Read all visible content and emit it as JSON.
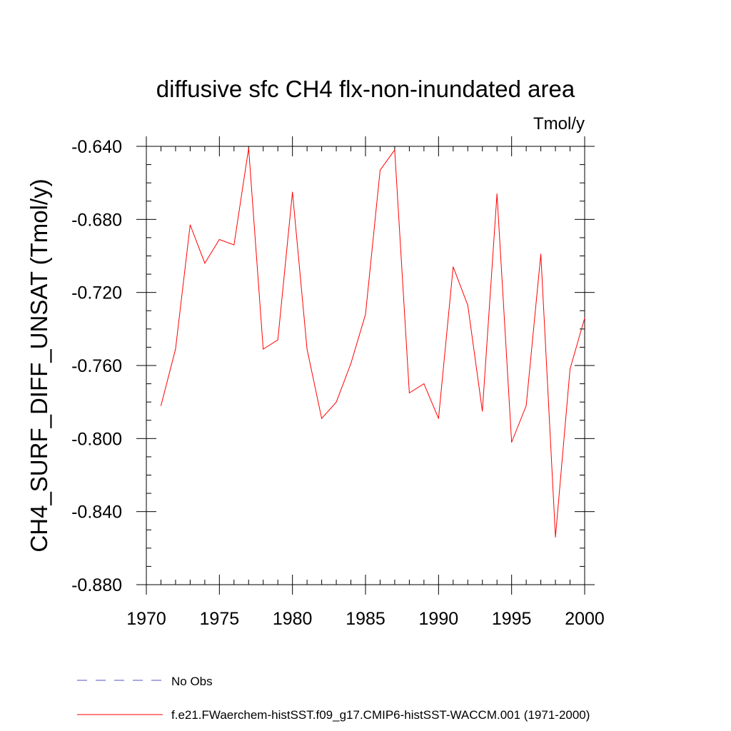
{
  "chart_data": {
    "type": "line",
    "title": "diffusive sfc CH4 flx-non-inundated area",
    "units_label": "Tmol/y",
    "ylabel": "CH4_SURF_DIFF_UNSAT  (Tmol/y)",
    "xlabel": "",
    "xlim": [
      1970,
      2000
    ],
    "ylim": [
      -0.88,
      -0.64
    ],
    "xticks": [
      "1970",
      "1975",
      "1980",
      "1985",
      "1990",
      "1995",
      "2000"
    ],
    "yticks": [
      "-0.640",
      "-0.680",
      "-0.720",
      "-0.760",
      "-0.800",
      "-0.840",
      "-0.880"
    ],
    "grid": false,
    "legend_position": "bottom",
    "series": [
      {
        "name": "f.e21.FWaerchem-histSST.f09_g17.CMIP6-histSST-WACCM.001 (1971-2000)",
        "color": "#ff0000",
        "x": [
          1971,
          1972,
          1973,
          1974,
          1975,
          1976,
          1977,
          1978,
          1979,
          1980,
          1981,
          1982,
          1983,
          1984,
          1985,
          1986,
          1987,
          1988,
          1989,
          1990,
          1991,
          1992,
          1993,
          1994,
          1995,
          1996,
          1997,
          1998,
          1999,
          2000
        ],
        "y": [
          -0.782,
          -0.751,
          -0.683,
          -0.704,
          -0.691,
          -0.694,
          -0.641,
          -0.751,
          -0.746,
          -0.665,
          -0.751,
          -0.789,
          -0.78,
          -0.759,
          -0.732,
          -0.653,
          -0.642,
          -0.775,
          -0.77,
          -0.789,
          -0.706,
          -0.727,
          -0.785,
          -0.666,
          -0.802,
          -0.782,
          -0.699,
          -0.854,
          -0.762,
          -0.734
        ]
      }
    ],
    "legend": [
      {
        "label": "No Obs",
        "color": "#5050c8",
        "style": "dashed"
      },
      {
        "label": "f.e21.FWaerchem-histSST.f09_g17.CMIP6-histSST-WACCM.001 (1971-2000)",
        "color": "#ff0000",
        "style": "solid"
      }
    ]
  }
}
